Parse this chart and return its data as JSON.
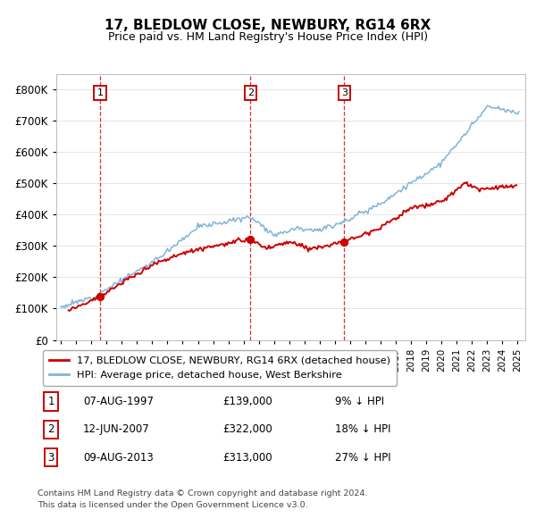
{
  "title": "17, BLEDLOW CLOSE, NEWBURY, RG14 6RX",
  "subtitle": "Price paid vs. HM Land Registry's House Price Index (HPI)",
  "legend_line1": "17, BLEDLOW CLOSE, NEWBURY, RG14 6RX (detached house)",
  "legend_line2": "HPI: Average price, detached house, West Berkshire",
  "sale1_date": "07-AUG-1997",
  "sale1_price": "£139,000",
  "sale1_hpi": "9% ↓ HPI",
  "sale1_year": 1997.58,
  "sale1_value": 139000,
  "sale2_date": "12-JUN-2007",
  "sale2_price": "£322,000",
  "sale2_hpi": "18% ↓ HPI",
  "sale2_year": 2007.45,
  "sale2_value": 322000,
  "sale3_date": "09-AUG-2013",
  "sale3_price": "£313,000",
  "sale3_hpi": "27% ↓ HPI",
  "sale3_year": 2013.61,
  "sale3_value": 313000,
  "footnote1": "Contains HM Land Registry data © Crown copyright and database right 2024.",
  "footnote2": "This data is licensed under the Open Government Licence v3.0.",
  "red_color": "#cc0000",
  "blue_color": "#7fb3d9",
  "ylim_max": 850000,
  "ylim_min": 0,
  "xlim_min": 1994.7,
  "xlim_max": 2025.5
}
